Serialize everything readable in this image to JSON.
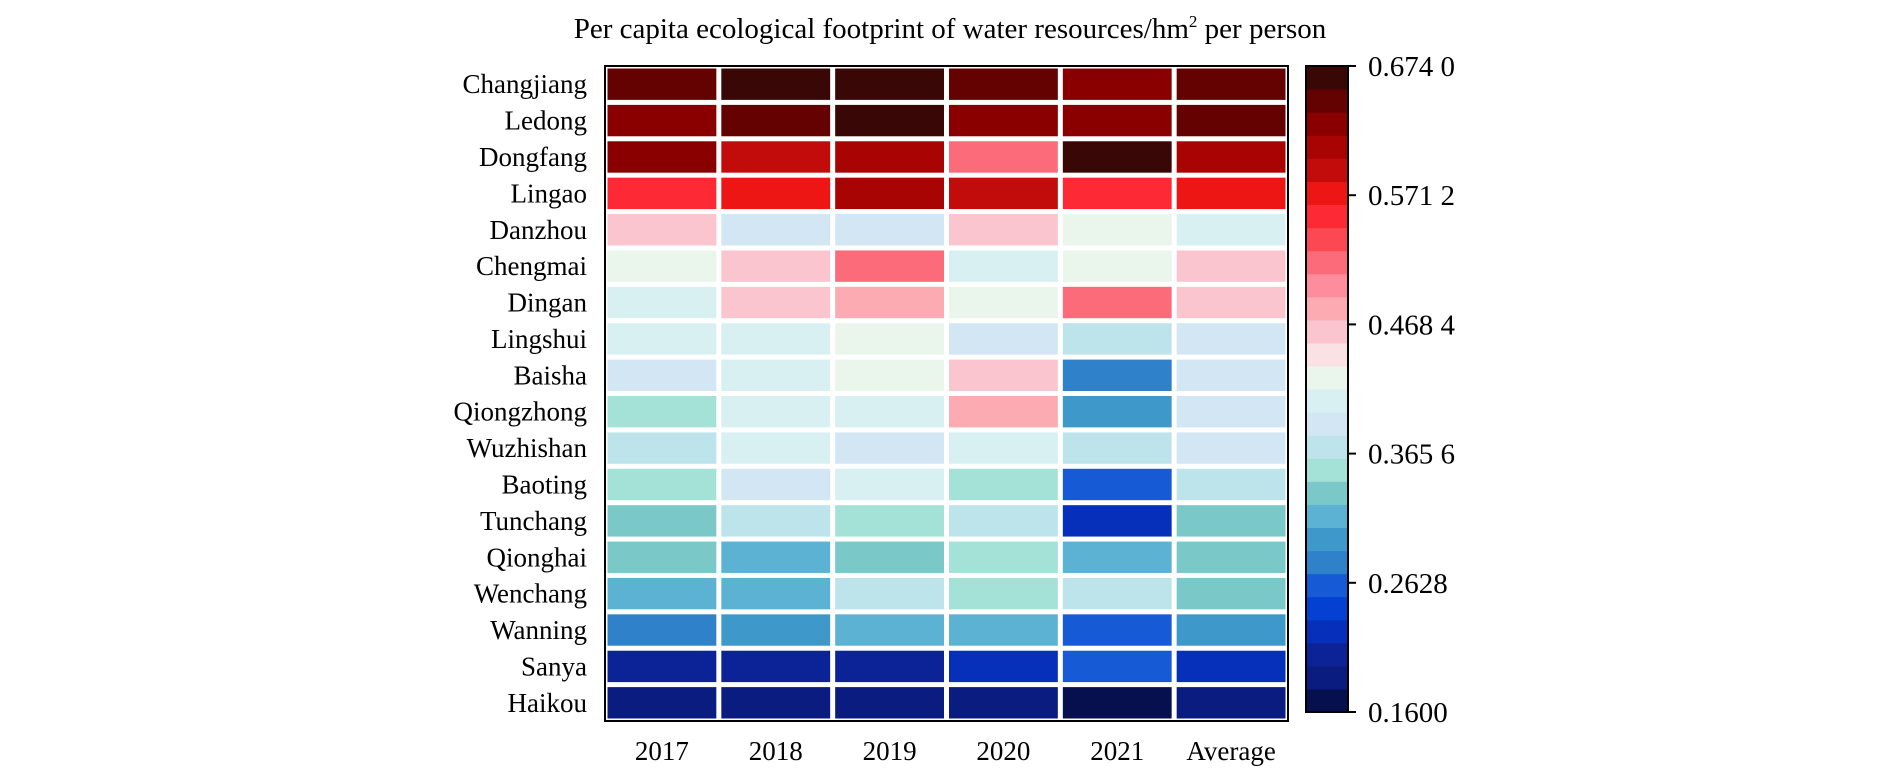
{
  "chart_data": {
    "type": "heatmap",
    "title": "Per capita ecological footprint of water resources/hm",
    "title_superscript": "2",
    "title_suffix": " per person",
    "columns": [
      "2017",
      "2018",
      "2019",
      "2020",
      "2021",
      "Average"
    ],
    "rows": [
      "Changjiang",
      "Ledong",
      "Dongfang",
      "Lingao",
      "Danzhou",
      "Chengmai",
      "Dingan",
      "Lingshui",
      "Baisha",
      "Qiongzhong",
      "Wuzhishan",
      "Baoting",
      "Tunchang",
      "Qionghai",
      "Wenchang",
      "Wanning",
      "Sanya",
      "Haikou"
    ],
    "values": [
      [
        0.65,
        0.665,
        0.665,
        0.64,
        0.625,
        0.645
      ],
      [
        0.625,
        0.655,
        0.66,
        0.63,
        0.63,
        0.64
      ],
      [
        0.625,
        0.59,
        0.615,
        0.525,
        0.668,
        0.615
      ],
      [
        0.56,
        0.565,
        0.615,
        0.59,
        0.56,
        0.575
      ],
      [
        0.47,
        0.385,
        0.385,
        0.47,
        0.435,
        0.41
      ],
      [
        0.435,
        0.47,
        0.51,
        0.41,
        0.435,
        0.47
      ],
      [
        0.41,
        0.47,
        0.485,
        0.435,
        0.51,
        0.47
      ],
      [
        0.41,
        0.41,
        0.435,
        0.385,
        0.37,
        0.385
      ],
      [
        0.385,
        0.41,
        0.435,
        0.47,
        0.275,
        0.385
      ],
      [
        0.355,
        0.41,
        0.41,
        0.485,
        0.29,
        0.385
      ],
      [
        0.365,
        0.41,
        0.385,
        0.41,
        0.37,
        0.385
      ],
      [
        0.355,
        0.385,
        0.41,
        0.355,
        0.26,
        0.37
      ],
      [
        0.335,
        0.37,
        0.355,
        0.37,
        0.225,
        0.335
      ],
      [
        0.335,
        0.31,
        0.335,
        0.355,
        0.31,
        0.335
      ],
      [
        0.31,
        0.325,
        0.37,
        0.355,
        0.37,
        0.335
      ],
      [
        0.275,
        0.29,
        0.31,
        0.31,
        0.26,
        0.29
      ],
      [
        0.21,
        0.21,
        0.21,
        0.225,
        0.26,
        0.225
      ],
      [
        0.195,
        0.195,
        0.18,
        0.195,
        0.165,
        0.18
      ]
    ],
    "colorbar": {
      "min": 0.16,
      "max": 0.674,
      "tick_values": [
        0.674,
        0.5712,
        0.4684,
        0.3656,
        0.2628,
        0.16
      ],
      "tick_labels": [
        "0.674 0",
        "0.571 2",
        "0.468 4",
        "0.365 6",
        "0.2628",
        "0.1600"
      ],
      "colors": [
        "#07104e",
        "#0a1c80",
        "#0b2396",
        "#0730ba",
        "#0440d2",
        "#165ad6",
        "#2f82c9",
        "#3f98ca",
        "#5cb2d2",
        "#7ac8c8",
        "#a4e1d6",
        "#bde4ea",
        "#d2e6f4",
        "#d8f0f2",
        "#eaf5ec",
        "#fae2e4",
        "#fbc5cf",
        "#fcabb2",
        "#fd8c9c",
        "#fb6b7a",
        "#fb4852",
        "#fd2a35",
        "#ee1614",
        "#c20b0b",
        "#a80404",
        "#8a0000",
        "#640101",
        "#3a0707"
      ]
    }
  }
}
